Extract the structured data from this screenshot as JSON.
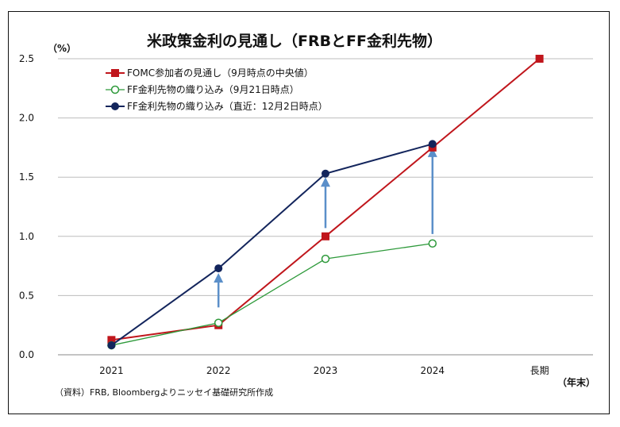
{
  "chart_data": {
    "type": "line",
    "title": "米政策金利の見通し（FRBとFF金利先物）",
    "ylabel": "（%）",
    "xlabel": "（年末）",
    "source": "（資料）FRB, Bloombergよりニッセイ基礎研究所作成",
    "categories": [
      "2021",
      "2022",
      "2023",
      "2024",
      "長期"
    ],
    "ylim": [
      0,
      2.5
    ],
    "yticks": [
      "0.0",
      "0.5",
      "1.0",
      "1.5",
      "2.0",
      "2.5"
    ],
    "grid": true,
    "legend_position": "top-left",
    "series": [
      {
        "name": "FOMC参加者の見通し（9月時点の中央値）",
        "values": [
          0.125,
          0.25,
          1.0,
          1.75,
          2.5
        ],
        "color": "#c0161c",
        "marker": "square"
      },
      {
        "name": "FF金利先物の織り込み（9月21日時点）",
        "values": [
          0.08,
          0.27,
          0.81,
          0.94,
          null
        ],
        "color": "#2e9a3b",
        "marker": "circle-open"
      },
      {
        "name": "FF金利先物の織り込み（直近：12月2日時点）",
        "values": [
          0.08,
          0.73,
          1.53,
          1.78,
          null
        ],
        "color": "#13255c",
        "marker": "circle"
      }
    ],
    "arrows": [
      {
        "category": "2022",
        "from": 0.4,
        "to": 0.69
      },
      {
        "category": "2023",
        "from": 1.07,
        "to": 1.5
      },
      {
        "category": "2024",
        "from": 1.02,
        "to": 1.75
      }
    ],
    "arrow_color": "#5b8fc9"
  }
}
